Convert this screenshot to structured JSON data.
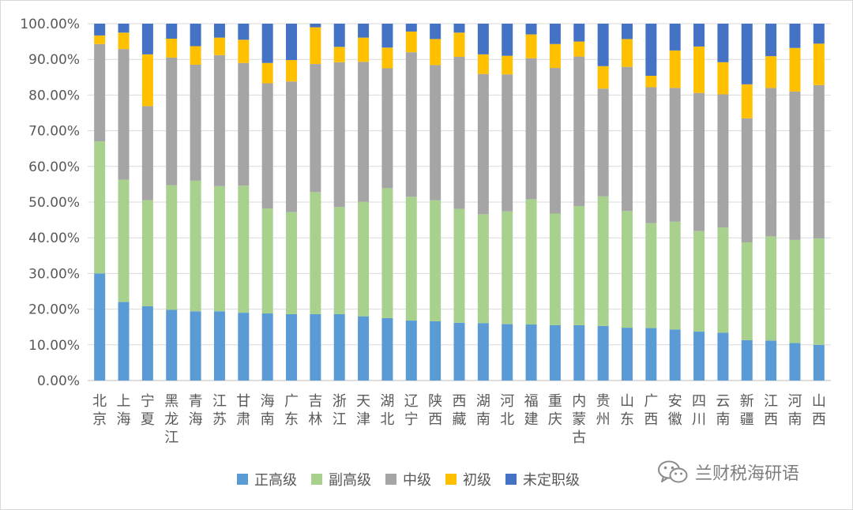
{
  "chart_data": {
    "type": "bar",
    "stacked": true,
    "percent": true,
    "categories": [
      "北京",
      "上海",
      "宁夏",
      "黑龙江",
      "青海",
      "江苏",
      "甘肃",
      "海南",
      "广东",
      "吉林",
      "浙江",
      "天津",
      "湖北",
      "辽宁",
      "陕西",
      "西藏",
      "湖南",
      "河北",
      "福建",
      "重庆",
      "内蒙古",
      "贵州",
      "山东",
      "广西",
      "安徽",
      "四川",
      "云南",
      "新疆",
      "江西",
      "河南",
      "山西"
    ],
    "series": [
      {
        "name": "正高级",
        "color": "#5b9bd5",
        "values": [
          30.0,
          22.0,
          20.8,
          19.8,
          19.4,
          19.4,
          19.0,
          18.8,
          18.6,
          18.6,
          18.6,
          18.0,
          17.5,
          16.8,
          16.6,
          16.2,
          16.1,
          15.8,
          15.7,
          15.5,
          15.5,
          15.3,
          14.8,
          14.7,
          14.3,
          13.7,
          13.4,
          11.3,
          11.2,
          10.5,
          10.0
        ]
      },
      {
        "name": "副高级",
        "color": "#a9d18e",
        "values": [
          37.0,
          34.3,
          29.7,
          34.9,
          36.6,
          35.1,
          35.6,
          29.4,
          28.6,
          34.2,
          30.0,
          32.1,
          36.4,
          34.7,
          33.9,
          31.9,
          30.5,
          31.6,
          35.1,
          31.3,
          33.4,
          36.3,
          32.7,
          29.4,
          30.2,
          28.2,
          29.5,
          27.4,
          29.2,
          28.9,
          29.8
        ]
      },
      {
        "name": "中级",
        "color": "#a5a5a5",
        "values": [
          27.3,
          36.6,
          26.4,
          35.8,
          32.5,
          36.7,
          34.4,
          35.1,
          36.6,
          35.9,
          40.6,
          39.2,
          33.6,
          40.5,
          37.9,
          42.6,
          39.3,
          38.4,
          39.5,
          40.8,
          41.9,
          30.2,
          40.4,
          38.1,
          37.5,
          38.7,
          37.3,
          34.8,
          41.6,
          41.6,
          43.0
        ]
      },
      {
        "name": "初级",
        "color": "#ffc000",
        "values": [
          2.4,
          4.6,
          14.5,
          5.3,
          5.2,
          4.9,
          6.5,
          5.7,
          6.0,
          10.3,
          4.3,
          6.8,
          5.8,
          5.8,
          7.3,
          6.8,
          5.5,
          5.2,
          6.7,
          6.7,
          4.2,
          6.3,
          7.8,
          3.2,
          10.5,
          13.0,
          9.0,
          9.5,
          8.9,
          12.2,
          11.6
        ]
      },
      {
        "name": "未定职级",
        "color": "#4472c4",
        "values": [
          3.3,
          2.5,
          8.6,
          4.2,
          6.3,
          3.9,
          4.5,
          11.0,
          10.2,
          1.0,
          6.5,
          3.9,
          6.7,
          2.2,
          4.3,
          2.5,
          8.6,
          9.0,
          3.0,
          5.7,
          5.0,
          11.9,
          4.3,
          14.6,
          7.5,
          6.4,
          10.8,
          17.0,
          9.1,
          6.8,
          5.6
        ]
      }
    ],
    "ylim": [
      0,
      100
    ],
    "yticks": [
      "0.00%",
      "10.00%",
      "20.00%",
      "30.00%",
      "40.00%",
      "50.00%",
      "60.00%",
      "70.00%",
      "80.00%",
      "90.00%",
      "100.00%"
    ],
    "grid": true,
    "legend_position": "bottom",
    "title": "",
    "xlabel": "",
    "ylabel": ""
  },
  "watermark": {
    "text": "兰财税海研语",
    "icon": "wechat-icon"
  }
}
